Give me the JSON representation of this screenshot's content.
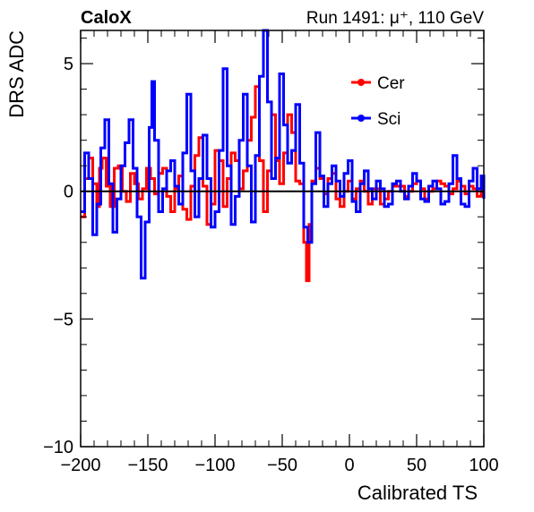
{
  "header": {
    "left": "CaloX",
    "right": "Run 1491:   μ⁺, 110 GeV"
  },
  "chart_data": {
    "type": "line",
    "xlabel": "Calibrated TS",
    "ylabel": "DRS ADC",
    "xlim": [
      -200,
      100
    ],
    "ylim": [
      -10,
      6.3
    ],
    "xticks": [
      -200,
      -150,
      -100,
      -50,
      0,
      50,
      100
    ],
    "xtick_labels": [
      "−200",
      "−150",
      "−100",
      "−50",
      "0",
      "50",
      "100"
    ],
    "yticks": [
      -10,
      -5,
      0,
      5
    ],
    "ytick_labels": [
      "−10",
      "−5",
      "0",
      "5"
    ],
    "zero_line": true,
    "grid": false,
    "legend_position": "top-right",
    "series": [
      {
        "name": "Cer",
        "color": "#ff0000",
        "x": [
          -200,
          -197,
          -194,
          -191,
          -188,
          -186,
          -184,
          -181,
          -178,
          -175,
          -172,
          -169,
          -166,
          -163,
          -160,
          -157,
          -154,
          -151,
          -148,
          -145,
          -142,
          -139,
          -136,
          -133,
          -130,
          -127,
          -124,
          -121,
          -118,
          -115,
          -112,
          -109,
          -106,
          -103,
          -100,
          -97,
          -94,
          -91,
          -88,
          -85,
          -82,
          -79,
          -76,
          -73,
          -70,
          -67,
          -64,
          -61,
          -58,
          -55,
          -52,
          -49,
          -46,
          -43,
          -40,
          -37,
          -34,
          -32,
          -30,
          -28,
          -25,
          -22,
          -19,
          -16,
          -13,
          -10,
          -7,
          -4,
          -1,
          2,
          5,
          8,
          11,
          14,
          17,
          20,
          23,
          26,
          29,
          32,
          35,
          38,
          41,
          44,
          47,
          50,
          53,
          56,
          59,
          62,
          65,
          68,
          71,
          74,
          77,
          80,
          83,
          86,
          89,
          92,
          95,
          98,
          100
        ],
        "y": [
          -1.0,
          0.5,
          1.3,
          0.3,
          -0.6,
          0.9,
          1.3,
          0.2,
          -0.6,
          0.9,
          1.0,
          0.0,
          -0.4,
          0.7,
          0.3,
          -0.3,
          0.1,
          0.9,
          0.5,
          -0.1,
          0.7,
          0.9,
          -0.2,
          -0.8,
          0.1,
          0.6,
          -0.7,
          -1.1,
          0.2,
          1.4,
          2.1,
          0.2,
          -1.3,
          -0.5,
          1.6,
          1.2,
          -0.6,
          0.5,
          1.5,
          1.2,
          0.1,
          0.8,
          2.0,
          2.9,
          4.1,
          1.2,
          -0.8,
          0.8,
          3.0,
          1.2,
          0.3,
          1.5,
          3.0,
          2.3,
          0.4,
          0.3,
          -2.0,
          -3.5,
          -1.3,
          0.4,
          0.9,
          0.5,
          -0.1,
          0.5,
          0.7,
          -0.3,
          -0.6,
          0.0,
          0.4,
          -0.3,
          0.1,
          0.4,
          0.0,
          -0.5,
          0.1,
          0.1,
          -0.5,
          -0.3,
          0.0,
          0.2,
          0.2,
          0.2,
          -0.2,
          0.0,
          0.3,
          0.4,
          0.1,
          -0.3,
          0.0,
          0.1,
          0.4,
          0.3,
          0.2,
          -0.1,
          0.1,
          0.4,
          0.2,
          -0.1,
          0.2,
          0.1,
          -0.2,
          0.0,
          0.1
        ]
      },
      {
        "name": "Sci",
        "color": "#0000ff",
        "x": [
          -200,
          -197,
          -194,
          -191,
          -188,
          -185,
          -182,
          -179,
          -176,
          -173,
          -170,
          -167,
          -164,
          -161,
          -158,
          -155,
          -152,
          -149,
          -147,
          -145,
          -142,
          -139,
          -136,
          -133,
          -130,
          -127,
          -124,
          -121,
          -118,
          -115,
          -112,
          -109,
          -106,
          -103,
          -100,
          -97,
          -94,
          -91,
          -88,
          -85,
          -82,
          -79,
          -76,
          -73,
          -70,
          -67,
          -64,
          -61,
          -58,
          -55,
          -52,
          -49,
          -46,
          -43,
          -40,
          -37,
          -34,
          -31,
          -28,
          -25,
          -22,
          -19,
          -16,
          -13,
          -10,
          -7,
          -4,
          -1,
          2,
          5,
          8,
          11,
          14,
          17,
          20,
          23,
          26,
          29,
          32,
          35,
          38,
          41,
          44,
          47,
          50,
          53,
          56,
          59,
          62,
          65,
          68,
          71,
          74,
          77,
          80,
          83,
          86,
          89,
          92,
          95,
          98,
          100
        ],
        "y": [
          -0.8,
          1.5,
          0.5,
          -1.7,
          -0.5,
          1.7,
          2.8,
          0.3,
          -1.6,
          -0.3,
          1.0,
          1.9,
          2.8,
          0.9,
          -1.0,
          -3.4,
          -1.2,
          2.5,
          4.3,
          2.0,
          -0.8,
          0.1,
          0.8,
          1.2,
          0.2,
          -0.5,
          1.5,
          3.8,
          0.8,
          -1.0,
          0.5,
          2.2,
          0.5,
          -1.4,
          -0.8,
          1.6,
          4.8,
          1.0,
          -1.3,
          -0.2,
          2.0,
          3.8,
          1.0,
          -1.2,
          1.4,
          4.5,
          6.3,
          3.5,
          0.5,
          1.3,
          4.6,
          2.6,
          1.1,
          1.6,
          3.4,
          1.1,
          -1.4,
          -2.0,
          0.3,
          2.3,
          0.6,
          -0.6,
          0.3,
          1.0,
          0.4,
          -0.2,
          0.7,
          1.2,
          -0.4,
          -0.8,
          0.3,
          0.8,
          0.1,
          -0.3,
          0.4,
          0.1,
          -0.6,
          -0.5,
          0.3,
          0.4,
          0.0,
          -0.3,
          0.2,
          0.7,
          0.4,
          -0.3,
          -0.4,
          0.2,
          0.4,
          0.1,
          -0.5,
          -0.4,
          0.3,
          1.4,
          0.5,
          -0.5,
          -0.6,
          0.4,
          0.9,
          0.1,
          0.6,
          -0.3
        ]
      }
    ]
  }
}
